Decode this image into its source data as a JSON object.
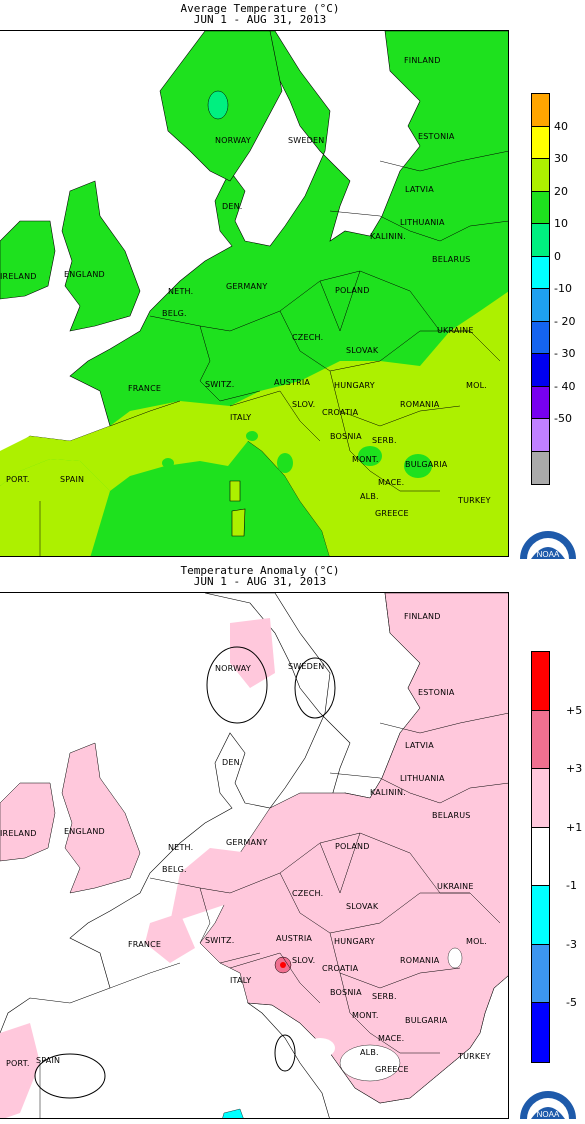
{
  "top": {
    "title_line1": "Average Temperature (°C)",
    "title_line2": "JUN  1 - AUG 31, 2013",
    "legend": {
      "colors": [
        "#FFA500",
        "#FFFF00",
        "#ADF000",
        "#1EE11E",
        "#00F080",
        "#00FFFF",
        "#1EA0F0",
        "#1464F0",
        "#0000F0",
        "#7800F0",
        "#C080FF",
        "#AAAAAA"
      ],
      "labels": [
        "40",
        "30",
        "20",
        "10",
        "0",
        "-10",
        "- 20",
        "- 30",
        "- 40",
        "-50"
      ]
    },
    "countries": [
      "NORWAY",
      "SWEDEN",
      "FINLAND",
      "ESTONIA",
      "LATVIA",
      "DEN.",
      "LITHUANIA",
      "ENGLAND",
      "IRELAND",
      "NETH.",
      "GERMANY",
      "POLAND",
      "BELARUS",
      "BELG.",
      "CZECH.",
      "SLOVAK",
      "UKRAINE",
      "FRANCE",
      "SWITZ.",
      "AUSTRIA",
      "HUNGARY",
      "MOL.",
      "SLOV.",
      "CROATIA",
      "ROMANIA",
      "ITALY",
      "BOSNIA",
      "SERB.",
      "MONT.",
      "BULGARIA",
      "MACE.",
      "ALB.",
      "GREECE",
      "SPAIN",
      "PORT.",
      "TURKEY",
      "KALININ."
    ]
  },
  "bottom": {
    "title_line1": "Temperature Anomaly (°C)",
    "title_line2": "JUN  1 - AUG 31, 2013",
    "legend": {
      "colors": [
        "#FF0000",
        "#F07090",
        "#FFC8DC",
        "#FFFFFF",
        "#00FFFF",
        "#3C96F0",
        "#0000FF"
      ],
      "labels": [
        "+5",
        "+3",
        "+1",
        "-1",
        "-3",
        "-5"
      ]
    },
    "countries": [
      "NORWAY",
      "SWEDEN",
      "FINLAND",
      "ESTONIA",
      "LATVIA",
      "DEN.",
      "LITHUANIA",
      "ENGLAND",
      "IRELAND",
      "NETH.",
      "GERMANY",
      "POLAND",
      "BELARUS",
      "BELG.",
      "CZECH.",
      "SLOVAK",
      "UKRAINE",
      "FRANCE",
      "SWITZ.",
      "AUSTRIA",
      "HUNGARY",
      "MOL.",
      "SLOV.",
      "CROATIA",
      "ROMANIA",
      "ITALY",
      "BOSNIA",
      "SERB.",
      "MONT.",
      "BULGARIA",
      "MACE.",
      "ALB.",
      "GREECE",
      "SPAIN",
      "PORT.",
      "TURKEY",
      "KALININ."
    ]
  },
  "logo": {
    "text": "NOAA",
    "icon": "noaa-logo-icon"
  }
}
